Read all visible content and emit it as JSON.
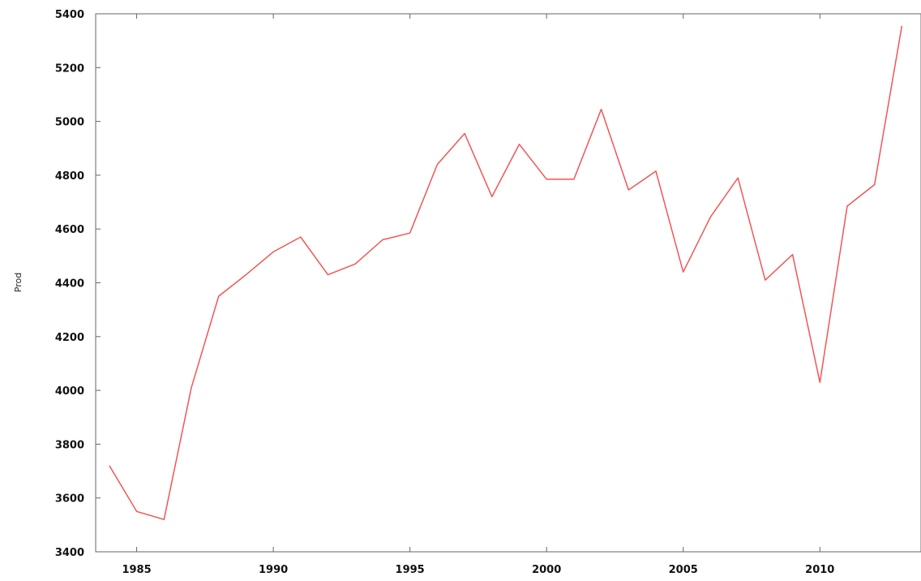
{
  "chart_data": {
    "type": "line",
    "title": "",
    "xlabel": "",
    "ylabel": "Prod",
    "xlim": [
      1983.5,
      2013.7
    ],
    "ylim": [
      3400,
      5400
    ],
    "x_ticks": [
      1985,
      1990,
      1995,
      2000,
      2005,
      2010
    ],
    "y_ticks": [
      3400,
      3600,
      3800,
      4000,
      4200,
      4400,
      4600,
      4800,
      5000,
      5200,
      5400
    ],
    "grid": false,
    "legend": "none",
    "series": [
      {
        "color": "#f25555",
        "x": [
          1984,
          1985,
          1986,
          1987,
          1988,
          1989,
          1990,
          1991,
          1992,
          1993,
          1994,
          1995,
          1996,
          1997,
          1998,
          1999,
          2000,
          2001,
          2002,
          2003,
          2004,
          2005,
          2006,
          2007,
          2008,
          2009,
          2010,
          2011,
          2012,
          2013
        ],
        "values": [
          3720,
          3550,
          3520,
          4010,
          4350,
          4430,
          4515,
          4570,
          4430,
          4470,
          4560,
          4585,
          4840,
          4955,
          4720,
          4915,
          4785,
          4785,
          5045,
          4745,
          4815,
          4440,
          4645,
          4790,
          4410,
          4505,
          4030,
          4685,
          4765,
          5355
        ]
      }
    ]
  }
}
